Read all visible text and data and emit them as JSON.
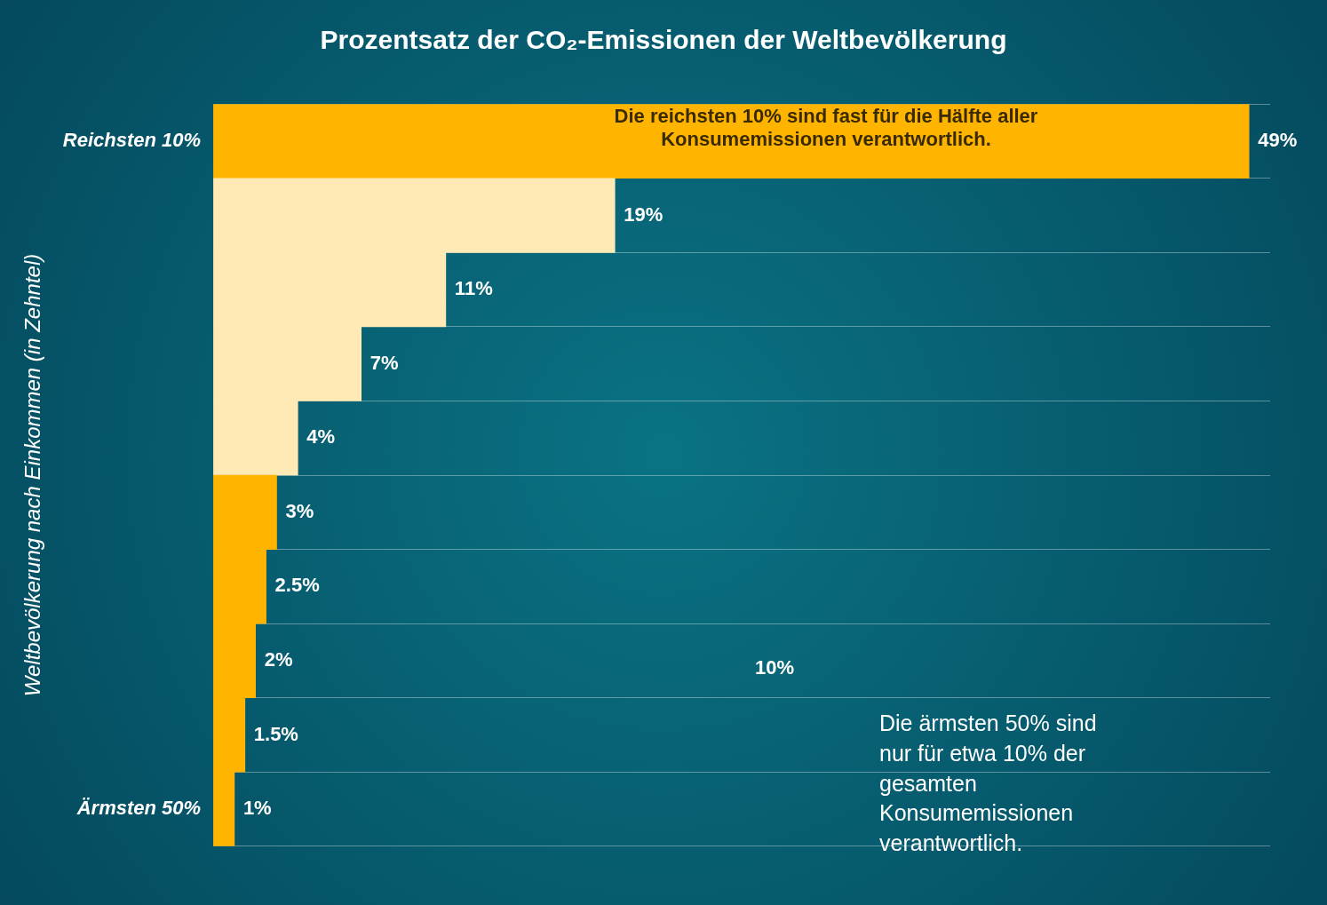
{
  "chart_data": {
    "type": "bar",
    "orientation": "horizontal",
    "title": "Prozentsatz der CO₂-Emissionen der Weltbevölkerung",
    "ylabel": "Weltbevölkerung nach Einkommen (in Zehntel)",
    "categories": [
      "Reichsten 10%",
      null,
      null,
      null,
      null,
      null,
      null,
      null,
      null,
      "Ärmsten 50%"
    ],
    "values": [
      49,
      19,
      11,
      7,
      4,
      3,
      2.5,
      2,
      1.5,
      1
    ],
    "value_labels": [
      "49%",
      "19%",
      "11%",
      "7%",
      "4%",
      "3%",
      "2.5%",
      "2%",
      "1.5%",
      "1%"
    ],
    "colors": [
      "#ffb400",
      "#ffe9b5",
      "#ffe9b5",
      "#ffe9b5",
      "#ffe9b5",
      "#ffb400",
      "#ffb400",
      "#ffb400",
      "#ffb400",
      "#ffb400"
    ],
    "xlim": [
      0,
      50
    ],
    "tick_labels": "y",
    "grid": "y",
    "legend": false,
    "annotations": [
      "Die reichsten 10% sind fast für die Hälfte aller Konsumemissionen verantwortlich.",
      "10%",
      "Die ärmsten 50% sind nur für etwa 10% der gesamten Konsumemissionen verantwortlich."
    ]
  }
}
